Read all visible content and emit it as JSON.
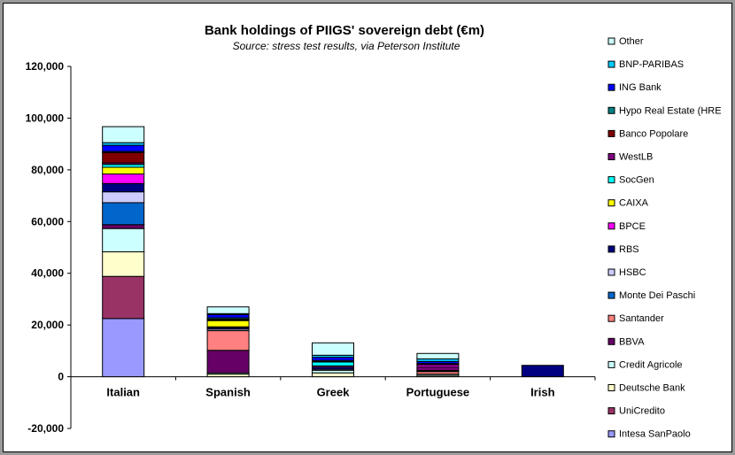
{
  "chart_data": {
    "type": "bar",
    "stacked": true,
    "title": "Bank holdings of PIIGS' sovereign debt (€m)",
    "subtitle": "Source: stress test results, via Peterson Institute",
    "xlabel": "",
    "ylabel": "",
    "ylim": [
      -20000,
      120000
    ],
    "yticks": [
      -20000,
      0,
      20000,
      40000,
      60000,
      80000,
      100000,
      120000
    ],
    "ytick_labels": [
      "-20,000",
      "0",
      "20,000",
      "40,000",
      "60,000",
      "80,000",
      "100,000",
      "120,000"
    ],
    "grid": false,
    "legend_position": "right",
    "categories": [
      "Italian",
      "Spanish",
      "Greek",
      "Portuguese",
      "Irish"
    ],
    "series": [
      {
        "name": "Intesa SanPaolo",
        "color": "#9999ff",
        "values": [
          22500,
          0,
          0,
          0,
          0
        ]
      },
      {
        "name": "UniCredito",
        "color": "#993366",
        "values": [
          16300,
          0,
          0,
          0,
          0
        ]
      },
      {
        "name": "Deutsche Bank",
        "color": "#ffffcc",
        "values": [
          9500,
          1000,
          1500,
          500,
          0
        ]
      },
      {
        "name": "Credit Agricole",
        "color": "#ccffff",
        "values": [
          9000,
          500,
          1000,
          500,
          0
        ]
      },
      {
        "name": "BBVA",
        "color": "#660066",
        "values": [
          1500,
          8700,
          0,
          0,
          0
        ]
      },
      {
        "name": "Santander",
        "color": "#ff8080",
        "values": [
          0,
          7600,
          0,
          1000,
          0
        ]
      },
      {
        "name": "Monte Dei Paschi",
        "color": "#0066cc",
        "values": [
          8500,
          0,
          0,
          0,
          0
        ]
      },
      {
        "name": "HSBC",
        "color": "#ccccff",
        "values": [
          4200,
          600,
          400,
          300,
          0
        ]
      },
      {
        "name": "RBS",
        "color": "#000080",
        "values": [
          3200,
          600,
          800,
          300,
          4400
        ]
      },
      {
        "name": "BPCE",
        "color": "#ff00ff",
        "values": [
          3700,
          300,
          500,
          700,
          0
        ]
      },
      {
        "name": "CAIXA",
        "color": "#ffff00",
        "values": [
          2600,
          2400,
          0,
          0,
          0
        ]
      },
      {
        "name": "SocGen",
        "color": "#00ffff",
        "values": [
          1100,
          300,
          1500,
          0,
          0
        ]
      },
      {
        "name": "WestLB",
        "color": "#800080",
        "values": [
          600,
          300,
          200,
          1500,
          0
        ]
      },
      {
        "name": "Banco Popolare",
        "color": "#800000",
        "values": [
          4000,
          0,
          0,
          0,
          0
        ]
      },
      {
        "name": "Hypo Real Estate (HRE",
        "color": "#008080",
        "values": [
          400,
          500,
          400,
          300,
          0
        ]
      },
      {
        "name": "ING Bank",
        "color": "#0000ff",
        "values": [
          2400,
          1200,
          1200,
          800,
          0
        ]
      },
      {
        "name": "BNP-PARIBAS",
        "color": "#00ccff",
        "values": [
          1000,
          400,
          800,
          1000,
          0
        ]
      },
      {
        "name": "Other",
        "color": "#ccffff",
        "values": [
          6200,
          2600,
          4800,
          2100,
          0
        ]
      }
    ]
  }
}
